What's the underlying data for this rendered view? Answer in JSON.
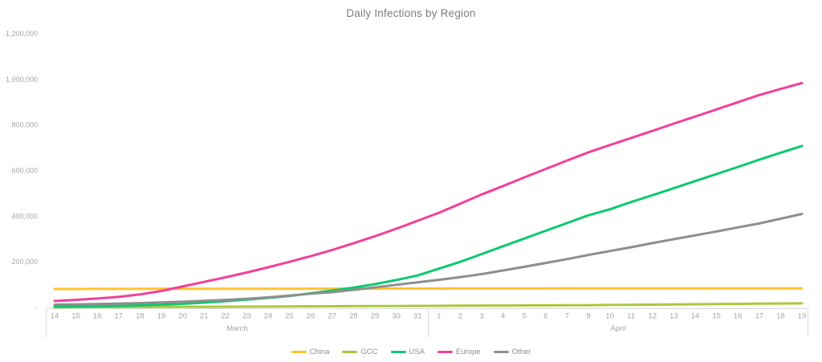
{
  "chart_data": {
    "type": "line",
    "title": "Daily Infections by Region",
    "grid": false,
    "legend_position": "bottom",
    "x_axis": {
      "day_labels": [
        "14",
        "15",
        "16",
        "17",
        "18",
        "19",
        "20",
        "21",
        "22",
        "23",
        "24",
        "25",
        "26",
        "27",
        "28",
        "29",
        "30",
        "31",
        "1",
        "2",
        "3",
        "4",
        "5",
        "6",
        "7",
        "9",
        "10",
        "11",
        "12",
        "13",
        "14",
        "15",
        "16",
        "17",
        "18",
        "19"
      ],
      "month_groups": [
        {
          "label": "March",
          "count": 18
        },
        {
          "label": "April",
          "count": 18
        }
      ]
    },
    "y_axis": {
      "tick_labels": [
        "1,200,000",
        "1,000,000",
        "800,000",
        "600,000",
        "400,000",
        "200,000",
        "-"
      ],
      "tick_values": [
        1200000,
        1000000,
        800000,
        600000,
        400000,
        200000,
        0
      ],
      "range": [
        0,
        1200000
      ]
    },
    "series": [
      {
        "name": "China",
        "color": "#FFC32C",
        "values": [
          81000,
          81100,
          81200,
          81300,
          81400,
          81500,
          81600,
          81700,
          81800,
          81900,
          82000,
          82100,
          82200,
          82300,
          82400,
          82500,
          82600,
          82700,
          82800,
          82900,
          83000,
          83100,
          83150,
          83200,
          83250,
          83300,
          83350,
          83400,
          83450,
          83500,
          83550,
          83600,
          83650,
          83700,
          83750,
          83800
        ]
      },
      {
        "name": "GCC",
        "color": "#A9C93D",
        "values": [
          1200,
          1400,
          1600,
          1800,
          2000,
          2300,
          2600,
          2900,
          3200,
          3600,
          4000,
          4400,
          4800,
          5200,
          5600,
          6000,
          6400,
          6800,
          7200,
          7600,
          8000,
          8400,
          8800,
          9200,
          9600,
          10000,
          10800,
          11600,
          12400,
          13200,
          14000,
          14800,
          15600,
          16400,
          17200,
          18000
        ]
      },
      {
        "name": "USA",
        "color": "#0DC96F",
        "values": [
          3000,
          4000,
          5000,
          7000,
          9000,
          12000,
          16000,
          21000,
          27000,
          34000,
          42000,
          50000,
          62000,
          74000,
          87000,
          102000,
          120000,
          140000,
          170000,
          200000,
          234000,
          268000,
          302000,
          336000,
          370000,
          404000,
          430000,
          462000,
          492000,
          523000,
          554000,
          585000,
          616000,
          648000,
          678000,
          708000
        ]
      },
      {
        "name": "Europe",
        "color": "#F2409B",
        "values": [
          28000,
          33000,
          39000,
          46000,
          57000,
          72000,
          92000,
          112000,
          132000,
          153000,
          176000,
          200000,
          225000,
          252000,
          281000,
          312000,
          345000,
          380000,
          415000,
          455000,
          495000,
          532000,
          570000,
          607000,
          644000,
          680000,
          712000,
          743000,
          774000,
          806000,
          837000,
          868000,
          900000,
          931000,
          958000,
          984000
        ]
      },
      {
        "name": "Other",
        "color": "#8E8E8E",
        "values": [
          12000,
          13000,
          15000,
          17000,
          19000,
          22000,
          25000,
          29000,
          33000,
          38000,
          44000,
          52000,
          60000,
          67000,
          77000,
          88000,
          99000,
          110000,
          121000,
          133000,
          146000,
          162000,
          178000,
          195000,
          212000,
          230000,
          247000,
          264000,
          282000,
          299000,
          316000,
          333000,
          351000,
          368000,
          389000,
          410000
        ]
      }
    ],
    "axis_line_color": "#d9d9d9",
    "text_color": "#a6a6a6",
    "title_color": "#7e7e7e"
  }
}
